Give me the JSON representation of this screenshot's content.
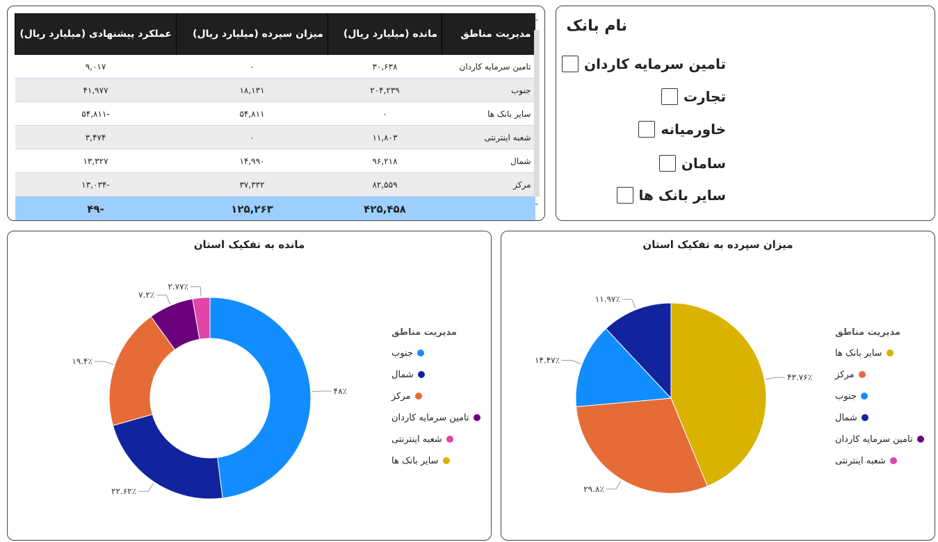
{
  "table": {
    "headers": [
      "مدیریت مناطق",
      "مانده (میلیارد ریال)",
      "میزان سپرده (میلیارد ریال)",
      "عملکرد پیشنهادی (میلیارد ریال)"
    ],
    "rows": [
      {
        "region": "تامین سرمایه کاردان",
        "balance": "۳۰,۶۳۸",
        "deposit": "۰",
        "performance": "۹,۰۱۷"
      },
      {
        "region": "جنوب",
        "balance": "۲۰۴,۲۳۹",
        "deposit": "۱۸,۱۳۱",
        "performance": "۴۱,۹۷۷"
      },
      {
        "region": "سایر بانک ها",
        "balance": "۰",
        "deposit": "۵۴,۸۱۱",
        "performance": "-۵۴,۸۱۱"
      },
      {
        "region": "شعبه اینترنتی",
        "balance": "۱۱,۸۰۳",
        "deposit": "۰",
        "performance": "۳,۴۷۴"
      },
      {
        "region": "شمال",
        "balance": "۹۶,۲۱۸",
        "deposit": "۱۴,۹۹۰",
        "performance": "۱۳,۳۲۷"
      },
      {
        "region": "مرکز",
        "balance": "۸۲,۵۵۹",
        "deposit": "۳۷,۳۳۲",
        "performance": "-۱۳,۰۳۴"
      }
    ],
    "total": {
      "region": "",
      "balance": "۴۲۵,۴۵۸",
      "deposit": "۱۲۵,۲۶۳",
      "performance": "-۴۹"
    }
  },
  "slicer": {
    "title": "نام بانک",
    "items": [
      "تامین سرمایه کاردان",
      "تجارت",
      "خاورمیانه",
      "سامان",
      "سایر بانک ها"
    ]
  },
  "chart_data": [
    {
      "type": "pie",
      "variant": "donut",
      "title": "مانده به تفکیک استان",
      "legend_title": "مدیریت مناطق",
      "legend_position": "right",
      "slices": [
        {
          "name": "جنوب",
          "value": 48,
          "label": "۴۸٪",
          "color": "#118dff"
        },
        {
          "name": "شمال",
          "value": 22.62,
          "label": "۲۲.۶۲٪",
          "color": "#12239e"
        },
        {
          "name": "مرکز",
          "value": 19.4,
          "label": "۱۹.۴٪",
          "color": "#e66c37"
        },
        {
          "name": "تامین سرمایه کاردان",
          "value": 7.2,
          "label": "۷.۲٪",
          "color": "#6b007b"
        },
        {
          "name": "شعبه اینترنتی",
          "value": 2.77,
          "label": "۲.۷۷٪",
          "color": "#e044a7"
        },
        {
          "name": "سایر بانک ها",
          "value": 0,
          "label": "",
          "color": "#d9b300"
        }
      ]
    },
    {
      "type": "pie",
      "title": "میزان سپرده به تفکیک استان",
      "legend_title": "مدیریت مناطق",
      "legend_position": "right",
      "slices": [
        {
          "name": "سایر بانک ها",
          "value": 43.76,
          "label": "۴۳.۷۶٪",
          "color": "#d9b300"
        },
        {
          "name": "مرکز",
          "value": 29.8,
          "label": "۲۹.۸٪",
          "color": "#e66c37"
        },
        {
          "name": "جنوب",
          "value": 14.47,
          "label": "۱۴.۴۷٪",
          "color": "#118dff"
        },
        {
          "name": "شمال",
          "value": 11.97,
          "label": "۱۱.۹۷٪",
          "color": "#12239e"
        },
        {
          "name": "تامین سرمایه کاردان",
          "value": 0,
          "label": "",
          "color": "#6b007b"
        },
        {
          "name": "شعبه اینترنتی",
          "value": 0,
          "label": "",
          "color": "#e044a7"
        }
      ]
    }
  ]
}
